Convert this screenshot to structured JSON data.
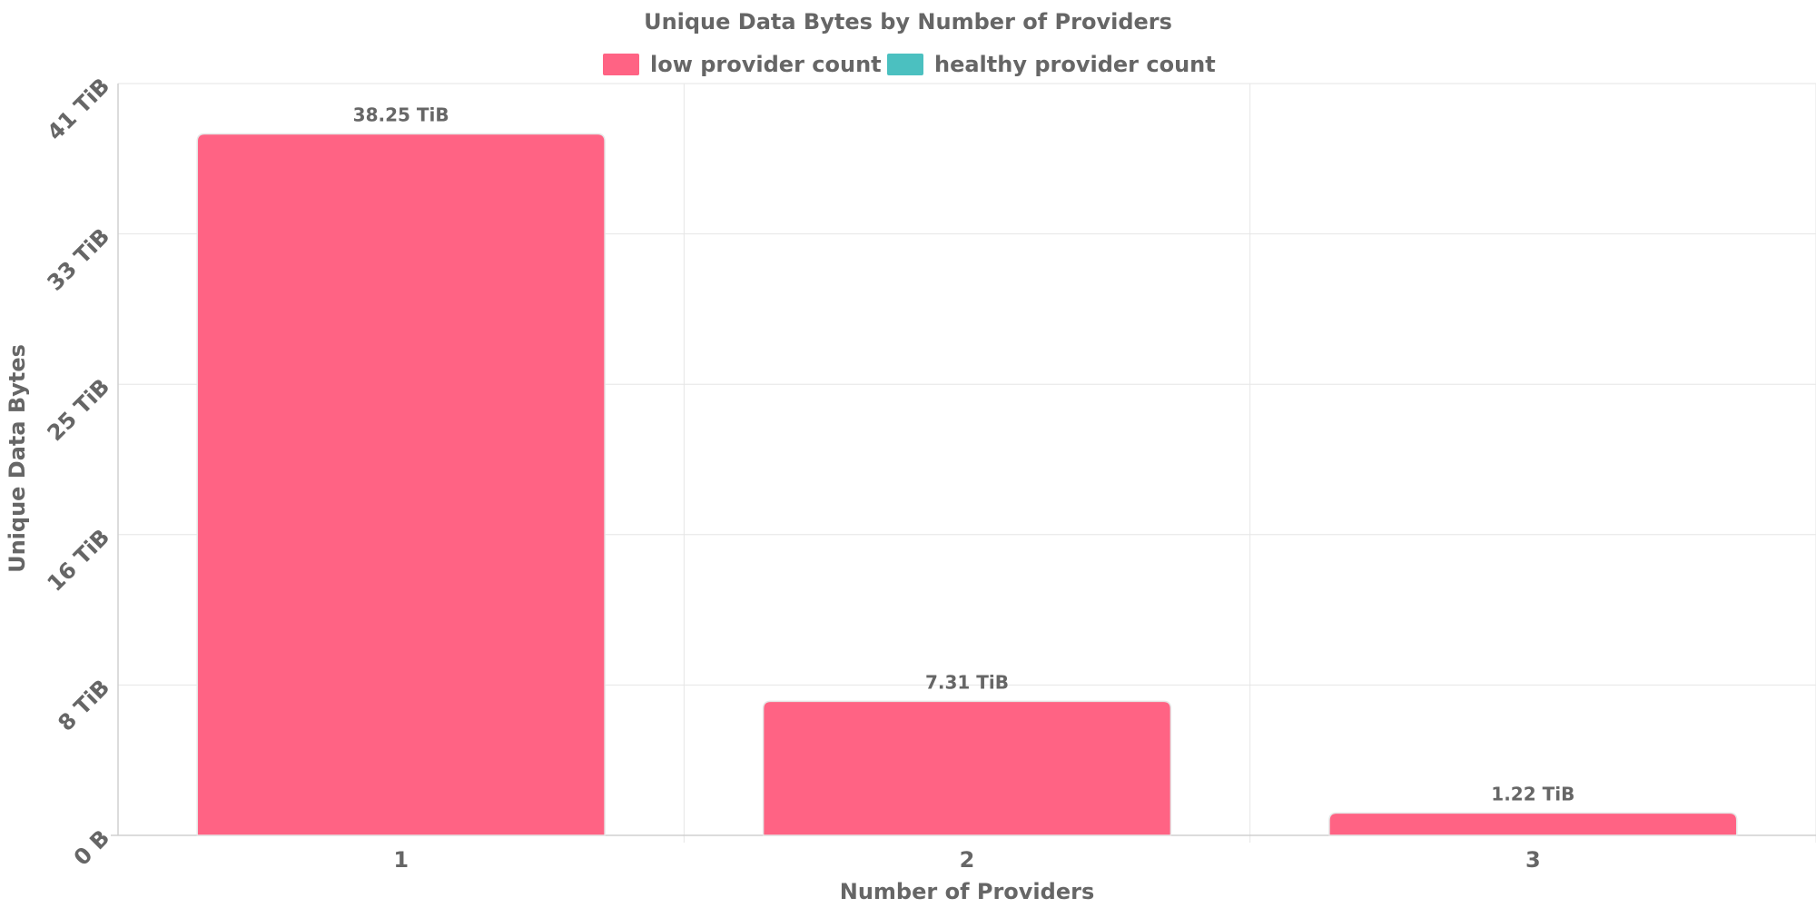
{
  "chart_data": {
    "type": "bar",
    "title": "Unique Data Bytes by Number of Providers",
    "xlabel": "Number of Providers",
    "ylabel": "Unique Data Bytes",
    "categories": [
      "1",
      "2",
      "3"
    ],
    "unit": "TiB",
    "series": [
      {
        "name": "low provider count",
        "color": "#ff6384",
        "values": [
          38.25,
          7.31,
          1.22
        ],
        "data_labels": [
          "38.25 TiB",
          "7.31 TiB",
          "1.22 TiB"
        ]
      },
      {
        "name": "healthy provider count",
        "color": "#4bc0c0",
        "values": [
          0,
          0,
          0
        ],
        "data_labels": []
      }
    ],
    "ylim": [
      0,
      41
    ],
    "y_ticks": [
      {
        "value": 0,
        "label": "0 B"
      },
      {
        "value": 8.2,
        "label": "8 TiB"
      },
      {
        "value": 16.4,
        "label": "16 TiB"
      },
      {
        "value": 24.6,
        "label": "25 TiB"
      },
      {
        "value": 32.8,
        "label": "33 TiB"
      },
      {
        "value": 41,
        "label": "41 TiB"
      }
    ],
    "grid": true,
    "legend_position": "top"
  }
}
